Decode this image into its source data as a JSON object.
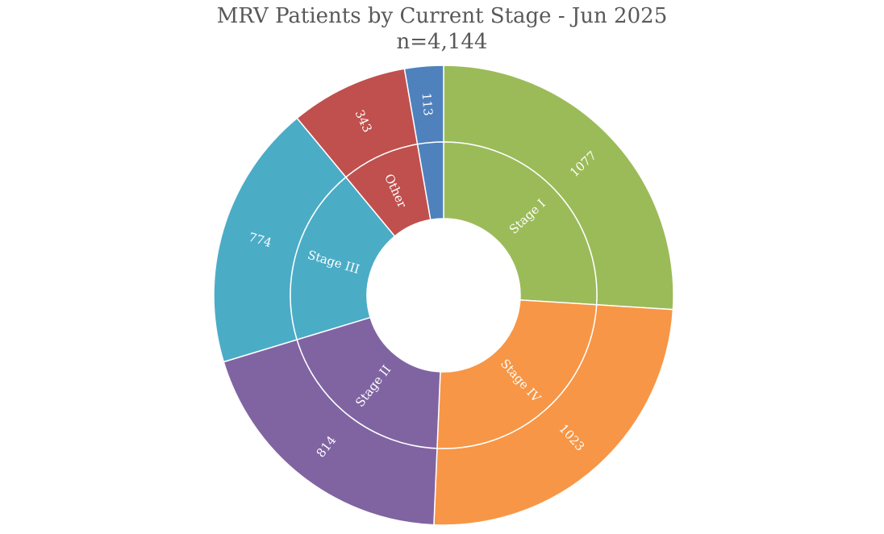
{
  "chart_data": {
    "type": "sunburst",
    "title": "MRV Patients by Current Stage - Jun 2025",
    "subtitle": "n=4,144",
    "total": 4144,
    "segments": [
      {
        "category": "Stage I",
        "value": 1077,
        "value_label": "1077",
        "color": "#9BBB59"
      },
      {
        "category": "Stage IV",
        "value": 1023,
        "value_label": "1023",
        "color": "#F79646"
      },
      {
        "category": "Stage II",
        "value": 814,
        "value_label": "814",
        "color": "#8064A2"
      },
      {
        "category": "Stage III",
        "value": 774,
        "value_label": "774",
        "color": "#4BACC6"
      },
      {
        "category": "Other",
        "value": 343,
        "value_label": "343",
        "color": "#C0504D"
      },
      {
        "category": "",
        "value": 113,
        "value_label": "113",
        "color": "#4F81BD"
      }
    ]
  }
}
